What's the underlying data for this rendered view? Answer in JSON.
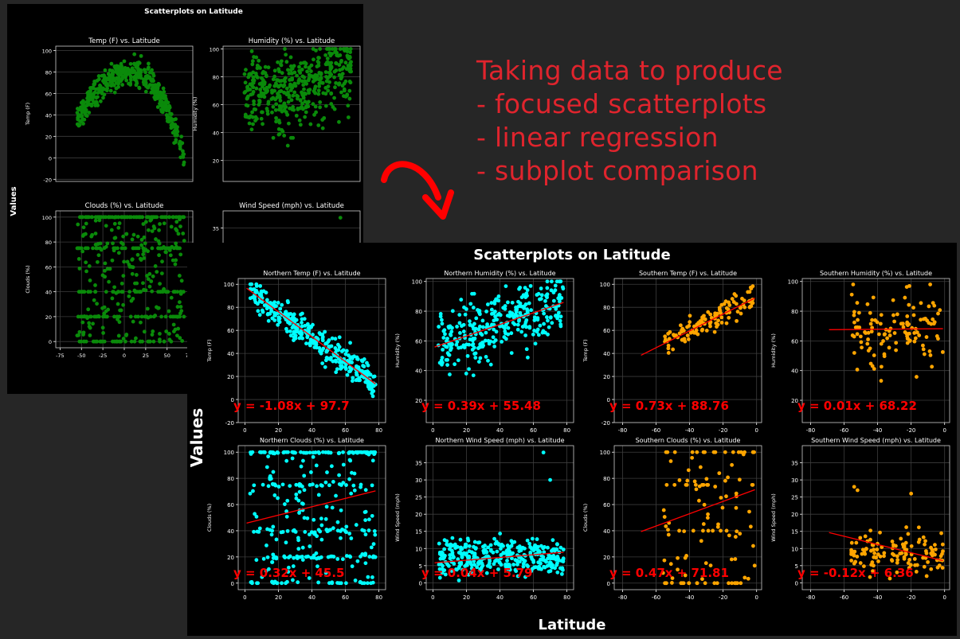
{
  "caption": {
    "lines": [
      "Taking data to produce",
      "- focused scatterplots",
      "- linear regression",
      "- subplot comparison"
    ],
    "color": "#e0242d"
  },
  "arrow": {
    "color": "#ff0000"
  },
  "figure_back": {
    "suptitle": "Scatterplots on Latitude",
    "ylabel": "Values",
    "point_color": "#0a8a0a"
  },
  "figure_front": {
    "suptitle": "Scatterplots on Latitude",
    "xlabel": "Latitude",
    "ylabel": "Values",
    "north_color": "#00ffff",
    "south_color": "#ffa500",
    "line_color": "#ff0000"
  },
  "chart_data": [
    {
      "type": "scatter",
      "title": "Temp (F) vs. Latitude",
      "ylabel": "Temp (F)",
      "xlim": [
        -75,
        75
      ],
      "ylim": [
        -20,
        100
      ],
      "x_ticks": [
        -75,
        -50,
        -25,
        0,
        25,
        50,
        75
      ],
      "y_ticks": [
        -20,
        0,
        20,
        40,
        60,
        80,
        100
      ],
      "trend": "rises from about 40 near latitude -55 to about 80-95 near latitude 0-25, then falls to about 0 near latitude 70"
    },
    {
      "type": "scatter",
      "title": "Humidity (%) vs. Latitude",
      "ylabel": "Humidity (%)",
      "y_ticks": [
        20,
        40,
        60,
        80,
        100
      ],
      "trend": "spread 10-100, densest at 60-100"
    },
    {
      "type": "scatter",
      "title": "Clouds (%) vs. Latitude",
      "ylabel": "Clouds (%)",
      "xlim": [
        -75,
        75
      ],
      "ylim": [
        0,
        100
      ],
      "x_ticks": [
        -75,
        -50,
        -25,
        0,
        25,
        50,
        75
      ],
      "y_ticks": [
        0,
        20,
        40,
        60,
        80,
        100
      ],
      "trend": "bands at 0, 20, 40, 75 and 100"
    },
    {
      "type": "scatter",
      "title": "Wind Speed (mph) vs. Latitude",
      "ylabel": "",
      "y_ticks": [
        35
      ],
      "visible_values": [
        38
      ]
    },
    {
      "type": "scatter",
      "title": "Northern Temp (F) vs. Latitude",
      "ylabel": "Temp (F)",
      "xlim": [
        -4,
        84
      ],
      "ylim": [
        -20,
        105
      ],
      "x_ticks": [
        0,
        20,
        40,
        60,
        80
      ],
      "y_ticks": [
        -20,
        0,
        20,
        40,
        60,
        80,
        100
      ],
      "regression": {
        "slope": -1.08,
        "intercept": 97.7,
        "x_range": [
          1,
          78
        ],
        "label": "y = -1.08x + 97.7"
      },
      "series_color": "#00ffff"
    },
    {
      "type": "scatter",
      "title": "Northern Humidity (%) vs. Latitude",
      "ylabel": "Humidity (%)",
      "xlim": [
        -4,
        84
      ],
      "ylim": [
        5,
        102
      ],
      "x_ticks": [
        0,
        20,
        40,
        60,
        80
      ],
      "y_ticks": [
        20,
        40,
        60,
        80,
        100
      ],
      "regression": {
        "slope": 0.39,
        "intercept": 55.48,
        "x_range": [
          1,
          78
        ],
        "label": "y = 0.39x + 55.48"
      },
      "series_color": "#00ffff"
    },
    {
      "type": "scatter",
      "title": "Southern Temp (F) vs. Latitude",
      "ylabel": "Temp (F)",
      "xlim": [
        -85,
        3
      ],
      "ylim": [
        -20,
        105
      ],
      "x_ticks": [
        -80,
        -60,
        -40,
        -20,
        0
      ],
      "y_ticks": [
        -20,
        0,
        20,
        40,
        60,
        80,
        100
      ],
      "regression": {
        "slope": 0.73,
        "intercept": 88.76,
        "x_range": [
          -69,
          -1
        ],
        "label": "y = 0.73x + 88.76"
      },
      "series_color": "#ffa500"
    },
    {
      "type": "scatter",
      "title": "Southern Humidity (%) vs. Latitude",
      "ylabel": "Humidity (%)",
      "xlim": [
        -85,
        3
      ],
      "ylim": [
        5,
        102
      ],
      "x_ticks": [
        -80,
        -60,
        -40,
        -20,
        0
      ],
      "y_ticks": [
        20,
        40,
        60,
        80,
        100
      ],
      "regression": {
        "slope": 0.01,
        "intercept": 68.22,
        "x_range": [
          -69,
          -1
        ],
        "label": "y = 0.01x + 68.22"
      },
      "series_color": "#ffa500"
    },
    {
      "type": "scatter",
      "title": "Northern Clouds (%) vs. Latitude",
      "ylabel": "Clouds (%)",
      "xlim": [
        -4,
        84
      ],
      "ylim": [
        -5,
        105
      ],
      "x_ticks": [
        0,
        20,
        40,
        60,
        80
      ],
      "y_ticks": [
        0,
        20,
        40,
        60,
        80,
        100
      ],
      "regression": {
        "slope": 0.32,
        "intercept": 45.5,
        "x_range": [
          1,
          78
        ],
        "label": "y = 0.32x + 45.5"
      },
      "series_color": "#00ffff"
    },
    {
      "type": "scatter",
      "title": "Northern Wind Speed (mph) vs. Latitude",
      "ylabel": "Wind Speed (mph)",
      "xlim": [
        -4,
        84
      ],
      "ylim": [
        -2,
        40
      ],
      "x_ticks": [
        0,
        20,
        40,
        60,
        80
      ],
      "y_ticks": [
        0,
        5,
        10,
        15,
        20,
        25,
        30,
        35
      ],
      "regression": {
        "slope": 0.04,
        "intercept": 5.79,
        "x_range": [
          1,
          78
        ],
        "label": "y = 0.04x + 5.79"
      },
      "series_color": "#00ffff"
    },
    {
      "type": "scatter",
      "title": "Southern Clouds (%) vs. Latitude",
      "ylabel": "Clouds (%)",
      "xlim": [
        -85,
        3
      ],
      "ylim": [
        -5,
        105
      ],
      "x_ticks": [
        -80,
        -60,
        -40,
        -20,
        0
      ],
      "y_ticks": [
        0,
        20,
        40,
        60,
        80,
        100
      ],
      "regression": {
        "slope": 0.47,
        "intercept": 71.81,
        "x_range": [
          -69,
          -1
        ],
        "label": "y = 0.47x + 71.81"
      },
      "series_color": "#ffa500"
    },
    {
      "type": "scatter",
      "title": "Southern Wind Speed (mph) vs. Latitude",
      "ylabel": "Wind Speed (mph)",
      "xlim": [
        -85,
        3
      ],
      "ylim": [
        -2,
        40
      ],
      "x_ticks": [
        -80,
        -60,
        -40,
        -20,
        0
      ],
      "y_ticks": [
        0,
        5,
        10,
        15,
        20,
        25,
        30,
        35
      ],
      "regression": {
        "slope": -0.12,
        "intercept": 6.36,
        "x_range": [
          -69,
          -1
        ],
        "label": "y = -0.12x + 6.36"
      },
      "series_color": "#ffa500"
    }
  ]
}
